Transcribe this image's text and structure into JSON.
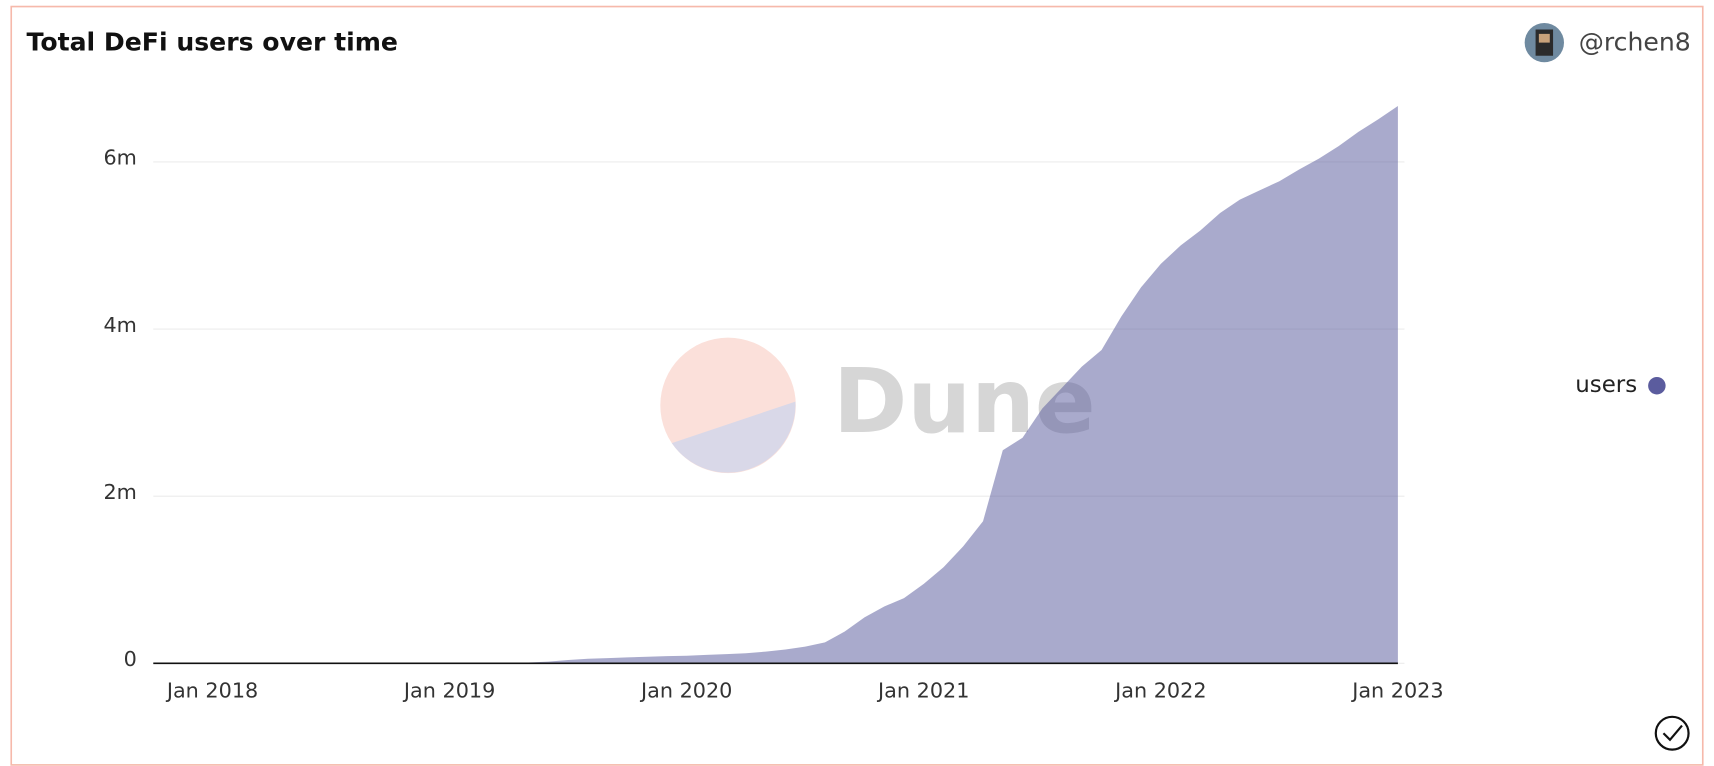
{
  "chart_data": {
    "type": "area",
    "title": "Total DeFi users over time",
    "author": "@rchen8",
    "watermark": "Dune",
    "x": [
      "2017-10",
      "2017-11",
      "2017-12",
      "2018-01",
      "2018-02",
      "2018-03",
      "2018-04",
      "2018-05",
      "2018-06",
      "2018-07",
      "2018-08",
      "2018-09",
      "2018-10",
      "2018-11",
      "2018-12",
      "2019-01",
      "2019-02",
      "2019-03",
      "2019-04",
      "2019-05",
      "2019-06",
      "2019-07",
      "2019-08",
      "2019-09",
      "2019-10",
      "2019-11",
      "2019-12",
      "2020-01",
      "2020-02",
      "2020-03",
      "2020-04",
      "2020-05",
      "2020-06",
      "2020-07",
      "2020-08",
      "2020-09",
      "2020-10",
      "2020-11",
      "2020-12",
      "2021-01",
      "2021-02",
      "2021-03",
      "2021-04",
      "2021-05",
      "2021-06",
      "2021-07",
      "2021-08",
      "2021-09",
      "2021-10",
      "2021-11",
      "2021-12",
      "2022-01",
      "2022-02",
      "2022-03",
      "2022-04",
      "2022-05",
      "2022-06",
      "2022-07",
      "2022-08",
      "2022-09",
      "2022-10",
      "2022-11",
      "2022-12",
      "2023-01"
    ],
    "series": [
      {
        "name": "users",
        "color": "#5b5c9e",
        "values": [
          0,
          0,
          0,
          0,
          0,
          0,
          0,
          0,
          0,
          0,
          0,
          0,
          0,
          0,
          0,
          0,
          0,
          0,
          5000,
          10000,
          20000,
          40000,
          55000,
          62000,
          70000,
          78000,
          85000,
          90000,
          100000,
          110000,
          120000,
          140000,
          165000,
          200000,
          250000,
          380000,
          550000,
          680000,
          780000,
          950000,
          1150000,
          1400000,
          1700000,
          2550000,
          2700000,
          3050000,
          3300000,
          3550000,
          3750000,
          4150000,
          4500000,
          4780000,
          5000000,
          5180000,
          5390000,
          5550000,
          5660000,
          5770000,
          5910000,
          6040000,
          6190000,
          6360000,
          6510000,
          6670000
        ]
      }
    ],
    "xlim": [
      "2017-10",
      "2023-01"
    ],
    "xticks": [
      {
        "value": "2018-01",
        "label": "Jan 2018"
      },
      {
        "value": "2019-01",
        "label": "Jan 2019"
      },
      {
        "value": "2020-01",
        "label": "Jan 2020"
      },
      {
        "value": "2021-01",
        "label": "Jan 2021"
      },
      {
        "value": "2022-01",
        "label": "Jan 2022"
      },
      {
        "value": "2023-01",
        "label": "Jan 2023"
      }
    ],
    "ylim": [
      0,
      6670000
    ],
    "yticks": [
      0,
      {
        "value": 2000000,
        "label": "2m"
      },
      {
        "value": 4000000,
        "label": "4m"
      },
      {
        "value": 6000000,
        "label": "6m"
      }
    ],
    "grid": true,
    "legend": "right"
  }
}
